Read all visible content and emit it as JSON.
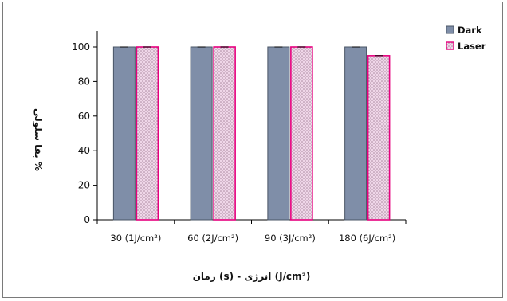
{
  "chart_data": {
    "type": "bar",
    "categories": [
      "30 (1J/cm²)",
      "60 (2J/cm²)",
      "90 (3J/cm²)",
      "180 (6J/cm²)"
    ],
    "series": [
      {
        "name": "Dark",
        "values": [
          100,
          100,
          100,
          100
        ],
        "color": "#7f8ea8"
      },
      {
        "name": "Laser",
        "values": [
          100,
          100,
          100,
          95
        ],
        "color": "#e4c8dc",
        "border": "#e6007e"
      }
    ],
    "ylim": [
      0,
      100
    ],
    "yticks": [
      0,
      20,
      40,
      60,
      80,
      100
    ],
    "ylabel": "بقا سلولی %",
    "xlabel": "(J/cm²) انرژی - (s) زمان",
    "legend": "top-right",
    "grid": false
  }
}
